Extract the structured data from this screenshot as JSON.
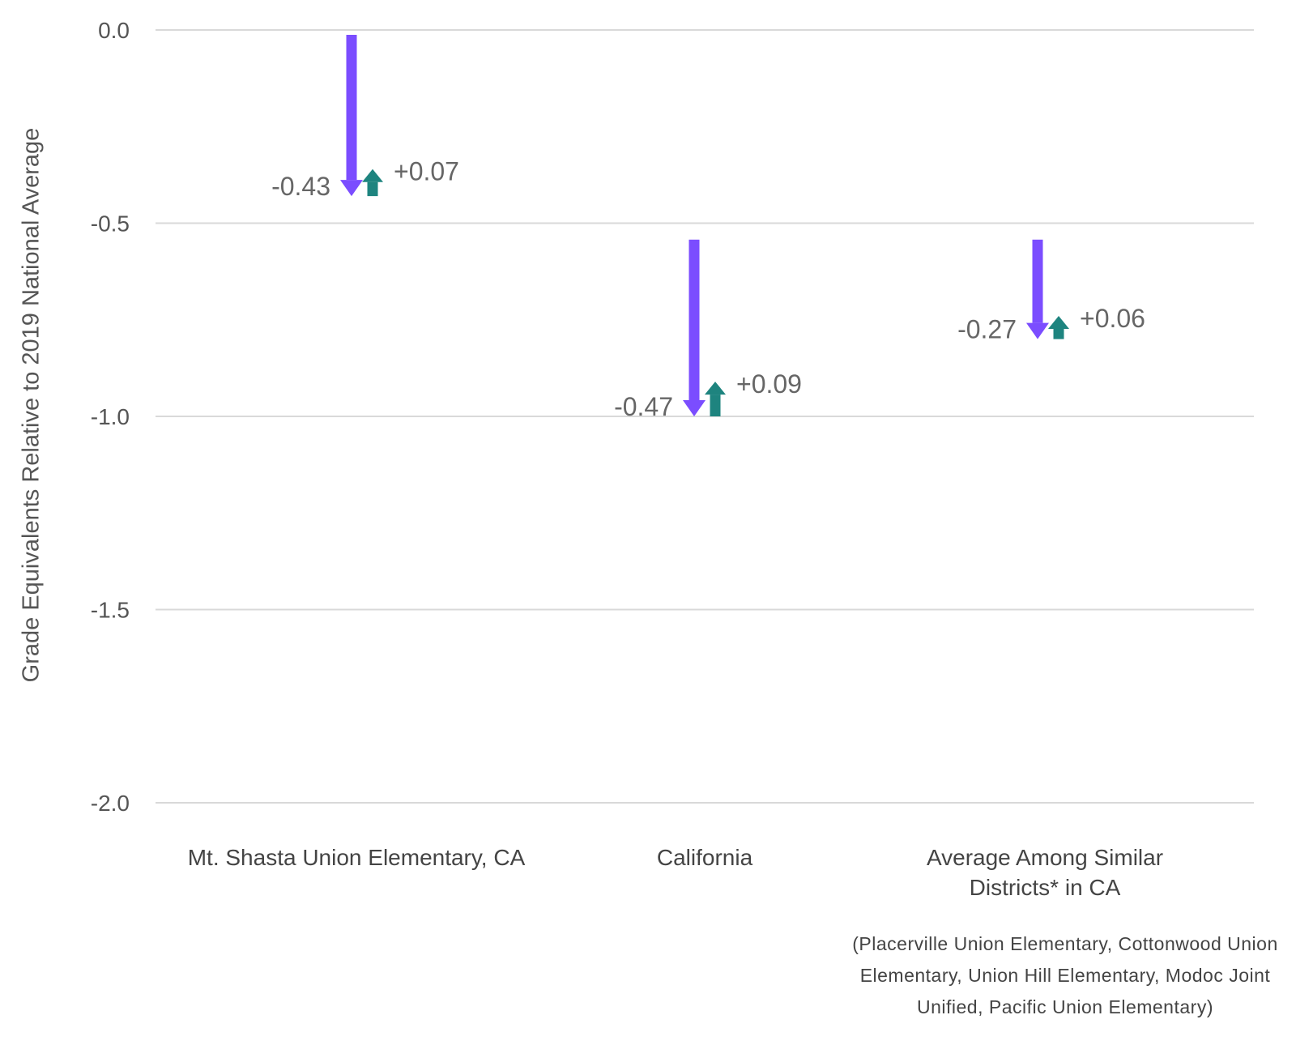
{
  "chart_data": {
    "type": "arrow",
    "title": "",
    "xlabel": "",
    "ylabel": "Grade Equivalents Relative to 2019 National Average",
    "ylim": [
      -2.0,
      0.0
    ],
    "yticks": [
      "0.0",
      "-0.5",
      "-1.0",
      "-1.5",
      "-2.0"
    ],
    "ytick_values": [
      0.0,
      -0.5,
      -1.0,
      -1.5,
      -2.0
    ],
    "grid": true,
    "categories": [
      "Mt. Shasta Union Elementary, CA",
      "California",
      "Average Among Similar Districts* in CA"
    ],
    "note": "(Placerville Union Elementary, Cottonwood Union Elementary, Union Hill Elementary, Modoc Joint Unified, Pacific Union Elementary)",
    "series": [
      {
        "role": "decline",
        "start": [
          0.0,
          -0.53,
          -0.53
        ],
        "values": [
          -0.43,
          -0.47,
          -0.27
        ],
        "labels": [
          "-0.43",
          "-0.47",
          "-0.27"
        ],
        "color": "#7B4DFF"
      },
      {
        "role": "recovery",
        "start": [
          -0.43,
          -1.0,
          -0.8
        ],
        "values": [
          0.07,
          0.09,
          0.06
        ],
        "labels": [
          "+0.07",
          "+0.09",
          "+0.06"
        ],
        "color": "#1E847F"
      }
    ]
  }
}
